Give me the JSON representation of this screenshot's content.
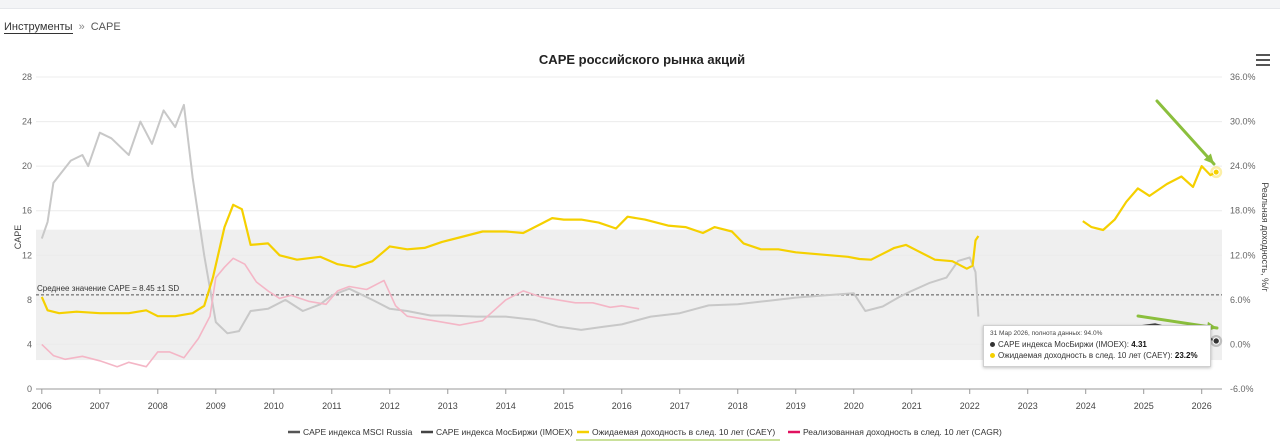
{
  "breadcrumb": {
    "home": "Инструменты",
    "separator": "»",
    "current": "CAPE"
  },
  "tooltip": {
    "date": "31 Мар 2026, полнота данных: 94.0%",
    "line1_label": "CAPE индекса МосБиржи (IMOEX):",
    "line1_value": "4.31",
    "line2_label": "Ожидаемая доходность в след. 10 лет (CAEY):",
    "line2_value": "23.2%"
  },
  "colors": {
    "msci": "#c8c8c8",
    "imoex": "#444444",
    "caey": "#f5d000",
    "cagr": "#f4b6c6",
    "band": "#efefef",
    "arrow": "#8bbf3d"
  },
  "chart_data": {
    "type": "line",
    "title": "CAPE российского рынка акций",
    "ylabel": "CAPE",
    "ylabel_right": "Реальная доходность, %/г",
    "ylim": [
      0,
      28
    ],
    "ylim_right": [
      -6,
      36
    ],
    "yticks": [
      "0",
      "4",
      "8",
      "12",
      "16",
      "20",
      "24",
      "28"
    ],
    "yticks_right": [
      "-6.0%",
      "0.0%",
      "6.0%",
      "12.0%",
      "18.0%",
      "24.0%",
      "30.0%",
      "36.0%"
    ],
    "xlim": [
      2005.9,
      2026.35
    ],
    "xticks": [
      "2006",
      "2007",
      "2008",
      "2009",
      "2010",
      "2011",
      "2012",
      "2013",
      "2014",
      "2015",
      "2016",
      "2017",
      "2018",
      "2019",
      "2020",
      "2021",
      "2022",
      "2023",
      "2024",
      "2025",
      "2026"
    ],
    "mean_label": "Среднее значение CAPE = 8.45 ±1 SD",
    "mean": 8.45,
    "band": [
      2.6,
      14.3
    ],
    "legend_position": "bottom",
    "series": [
      {
        "name": "CAPE индекса MSCI Russia",
        "axis": "left",
        "x": [
          2006.0,
          2006.1,
          2006.2,
          2006.35,
          2006.5,
          2006.7,
          2006.8,
          2007.0,
          2007.2,
          2007.5,
          2007.7,
          2007.9,
          2008.1,
          2008.3,
          2008.45,
          2008.6,
          2008.8,
          2009.0,
          2009.2,
          2009.4,
          2009.6,
          2009.9,
          2010.2,
          2010.5,
          2010.8,
          2011.0,
          2011.3,
          2011.7,
          2012.0,
          2012.3,
          2012.7,
          2013.0,
          2013.5,
          2014.0,
          2014.5,
          2014.9,
          2015.3,
          2015.7,
          2016.0,
          2016.5,
          2017.0,
          2017.5,
          2018.0,
          2018.5,
          2019.0,
          2019.5,
          2020.0,
          2020.2,
          2020.5,
          2020.8,
          2021.0,
          2021.3,
          2021.6,
          2021.8,
          2022.0,
          2022.1,
          2022.15
        ],
        "y": [
          13.5,
          15.0,
          18.5,
          19.5,
          20.5,
          21.0,
          20.0,
          23.0,
          22.5,
          21.0,
          24.0,
          22.0,
          25.0,
          23.5,
          25.5,
          19.0,
          12.0,
          6.0,
          5.0,
          5.2,
          7.0,
          7.2,
          8.0,
          7.0,
          7.6,
          8.4,
          9.0,
          8.0,
          7.2,
          7.0,
          6.6,
          6.6,
          6.5,
          6.5,
          6.2,
          5.6,
          5.3,
          5.6,
          5.8,
          6.5,
          6.8,
          7.5,
          7.6,
          7.9,
          8.2,
          8.4,
          8.6,
          7.0,
          7.4,
          8.3,
          8.8,
          9.5,
          10.0,
          11.5,
          11.8,
          10.5,
          6.5
        ]
      },
      {
        "name": "CAPE индекса МосБиржи (IMOEX)",
        "axis": "left",
        "x": [
          2024.6,
          2024.9,
          2025.2,
          2025.5,
          2025.8,
          2026.0,
          2026.15,
          2026.25
        ],
        "y": [
          5.2,
          5.6,
          5.8,
          5.4,
          5.0,
          4.6,
          4.5,
          4.31
        ]
      },
      {
        "name": "Ожидаемая доходность в след. 10 лет (CAEY)",
        "axis": "right",
        "x": [
          2006.0,
          2006.1,
          2006.3,
          2006.6,
          2007.0,
          2007.5,
          2007.8,
          2008.0,
          2008.3,
          2008.6,
          2008.8,
          2008.95,
          2009.15,
          2009.3,
          2009.45,
          2009.6,
          2009.9,
          2010.1,
          2010.4,
          2010.8,
          2011.1,
          2011.4,
          2011.7,
          2012.0,
          2012.3,
          2012.6,
          2012.9,
          2013.2,
          2013.6,
          2014.0,
          2014.3,
          2014.6,
          2014.8,
          2015.0,
          2015.3,
          2015.6,
          2015.9,
          2016.1,
          2016.4,
          2016.8,
          2017.1,
          2017.4,
          2017.6,
          2017.9,
          2018.1,
          2018.4,
          2018.7,
          2019.0,
          2019.3,
          2019.6,
          2019.9,
          2020.1,
          2020.3,
          2020.5,
          2020.7,
          2020.9,
          2021.1,
          2021.4,
          2021.7,
          2021.95,
          2022.05,
          2022.1,
          2022.15,
          2023.95,
          2024.1,
          2024.3,
          2024.5,
          2024.7,
          2024.9,
          2025.1,
          2025.4,
          2025.65,
          2025.85,
          2026.0,
          2026.15,
          2026.25
        ],
        "y": [
          6.4,
          4.6,
          4.2,
          4.4,
          4.2,
          4.2,
          4.6,
          3.8,
          3.8,
          4.2,
          5.2,
          9.0,
          15.8,
          18.8,
          18.2,
          13.4,
          13.6,
          12.0,
          11.4,
          11.8,
          10.8,
          10.4,
          11.2,
          13.2,
          12.8,
          13.0,
          13.8,
          14.4,
          15.2,
          15.2,
          15.0,
          16.2,
          17.0,
          16.8,
          16.8,
          16.4,
          15.6,
          17.2,
          16.8,
          16.0,
          15.8,
          15.0,
          15.8,
          15.2,
          13.6,
          12.8,
          12.8,
          12.4,
          12.2,
          12.0,
          11.8,
          11.5,
          11.4,
          12.2,
          13.0,
          13.4,
          12.6,
          11.4,
          11.2,
          10.2,
          10.6,
          14.0,
          14.6,
          16.6,
          15.8,
          15.4,
          16.8,
          19.2,
          21.0,
          20.0,
          21.6,
          22.6,
          21.2,
          24.0,
          22.8,
          23.2
        ]
      },
      {
        "name": "Реализованная доходность в след. 10 лет (CAGR)",
        "axis": "right",
        "x": [
          2006.0,
          2006.2,
          2006.4,
          2006.7,
          2007.0,
          2007.3,
          2007.5,
          2007.8,
          2008.0,
          2008.2,
          2008.45,
          2008.7,
          2008.9,
          2009.0,
          2009.15,
          2009.3,
          2009.5,
          2009.7,
          2009.9,
          2010.1,
          2010.3,
          2010.6,
          2010.9,
          2011.1,
          2011.3,
          2011.6,
          2011.9,
          2012.1,
          2012.3,
          2012.6,
          2012.9,
          2013.2,
          2013.6,
          2014.0,
          2014.3,
          2014.6,
          2014.9,
          2015.2,
          2015.5,
          2015.8,
          2016.0,
          2016.3
        ],
        "y": [
          0.0,
          -1.5,
          -2.0,
          -1.6,
          -2.2,
          -3.0,
          -2.4,
          -3.0,
          -1.0,
          -1.0,
          -1.8,
          0.8,
          3.8,
          9.0,
          10.4,
          11.6,
          10.8,
          8.4,
          7.2,
          6.2,
          6.6,
          5.8,
          5.4,
          7.2,
          7.8,
          7.4,
          8.6,
          5.2,
          3.8,
          3.4,
          3.0,
          2.6,
          3.2,
          6.0,
          7.2,
          6.4,
          6.0,
          5.6,
          5.6,
          5.0,
          5.2,
          4.8
        ]
      }
    ]
  },
  "legend": [
    {
      "label": "CAPE индекса MSCI Russia",
      "color": "#555555"
    },
    {
      "label": "CAPE индекса МосБиржи (IMOEX)",
      "color": "#444444"
    },
    {
      "label": "Ожидаемая доходность в след. 10 лет (CAEY)",
      "color": "#f5d000"
    },
    {
      "label": "Реализованная доходность в след. 10 лет (CAGR)",
      "color": "#e0115f"
    }
  ]
}
